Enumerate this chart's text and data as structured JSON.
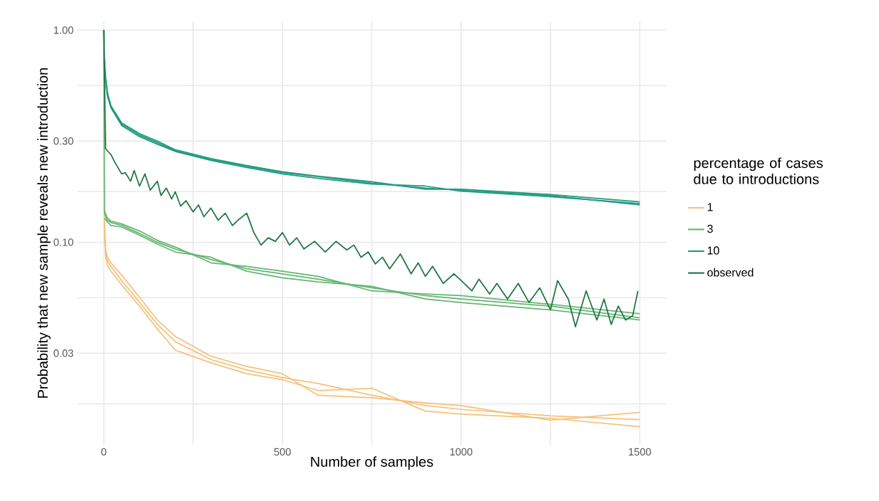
{
  "chart_data": {
    "type": "line",
    "xlabel": "Number of samples",
    "ylabel": "Probability that new sample reveals new introduction",
    "legend_title": "percentage of cases due to introductions",
    "legend": "right",
    "log": "y",
    "grid": true,
    "line_style": "solid",
    "xlim": [
      -75,
      1575
    ],
    "ylim": [
      0.0111,
      1.1
    ],
    "xticks": [
      0,
      {
        "value": 250,
        "label": null
      },
      500,
      {
        "value": 750,
        "label": null
      },
      1000,
      {
        "value": 1250,
        "label": null
      },
      1500
    ],
    "yticks": [
      {
        "value": 0.01732,
        "label": null
      },
      0.03,
      {
        "value": 0.05477,
        "label": null
      },
      {
        "value": 0.1,
        "label": "0.10"
      },
      {
        "value": 0.1732,
        "label": null
      },
      {
        "value": 0.3,
        "label": "0.30"
      },
      {
        "value": 0.5477,
        "label": null
      },
      {
        "value": 1,
        "label": "1.00"
      }
    ],
    "x": [
      0,
      2,
      5,
      10,
      20,
      50,
      100,
      150,
      200,
      300,
      400,
      500,
      600,
      750,
      900,
      1000,
      1250,
      1500
    ],
    "series": [
      {
        "name": "1",
        "color": "#f5c17a",
        "values": [
          1.0,
          0.118,
          0.09,
          0.082,
          0.077,
          0.066,
          0.052,
          0.041,
          0.034,
          0.028,
          0.025,
          0.023,
          0.0216,
          0.019,
          0.017,
          0.0163,
          0.0152,
          0.0146
        ]
      },
      {
        "color": "#f5c17a",
        "x": [
          2,
          5,
          10,
          20,
          50,
          100,
          150,
          200,
          300,
          400,
          500,
          600,
          750,
          900,
          1000,
          1250,
          1500
        ],
        "values": [
          0.11,
          0.086,
          0.078,
          0.073,
          0.063,
          0.05,
          0.039,
          0.031,
          0.027,
          0.024,
          0.0225,
          0.02,
          0.0205,
          0.016,
          0.0155,
          0.0148,
          0.0135
        ]
      },
      {
        "color": "#f5c17a",
        "x": [
          2,
          5,
          10,
          20,
          50,
          100,
          150,
          200,
          300,
          400,
          500,
          600,
          750,
          900,
          1000,
          1250,
          1500
        ],
        "values": [
          0.125,
          0.093,
          0.085,
          0.08,
          0.07,
          0.055,
          0.043,
          0.036,
          0.029,
          0.026,
          0.024,
          0.019,
          0.0185,
          0.0175,
          0.017,
          0.0145,
          0.0158
        ]
      },
      {
        "name": "3",
        "color": "#66b572",
        "values": [
          1.0,
          0.137,
          0.133,
          0.127,
          0.124,
          0.12,
          0.11,
          0.1,
          0.093,
          0.083,
          0.075,
          0.071,
          0.067,
          0.061,
          0.056,
          0.054,
          0.05,
          0.044
        ]
      },
      {
        "color": "#66b572",
        "x": [
          2,
          5,
          10,
          20,
          50,
          100,
          150,
          200,
          300,
          400,
          500,
          600,
          750,
          900,
          1000,
          1250,
          1500
        ],
        "values": [
          0.13,
          0.128,
          0.125,
          0.12,
          0.118,
          0.108,
          0.098,
          0.09,
          0.085,
          0.073,
          0.068,
          0.065,
          0.062,
          0.054,
          0.052,
          0.048,
          0.043
        ]
      },
      {
        "color": "#66b572",
        "x": [
          2,
          5,
          10,
          20,
          50,
          100,
          150,
          200,
          300,
          400,
          500,
          600,
          750,
          900,
          1000,
          1250,
          1500
        ],
        "values": [
          0.14,
          0.136,
          0.13,
          0.126,
          0.122,
          0.113,
          0.102,
          0.095,
          0.08,
          0.077,
          0.073,
          0.069,
          0.059,
          0.057,
          0.056,
          0.051,
          0.046
        ]
      },
      {
        "name": "10",
        "color": "#229a82",
        "values": [
          1.0,
          0.7,
          0.595,
          0.5,
          0.437,
          0.36,
          0.32,
          0.295,
          0.27,
          0.245,
          0.228,
          0.213,
          0.204,
          0.19,
          0.18,
          0.176,
          0.166,
          0.15
        ]
      },
      {
        "color": "#229a82",
        "x": [
          2,
          5,
          10,
          20,
          50,
          100,
          150,
          200,
          300,
          400,
          500,
          600,
          750,
          900,
          1000,
          1250,
          1500
        ],
        "values": [
          0.68,
          0.58,
          0.49,
          0.43,
          0.355,
          0.315,
          0.29,
          0.268,
          0.243,
          0.225,
          0.21,
          0.2,
          0.188,
          0.184,
          0.174,
          0.164,
          0.152
        ]
      },
      {
        "color": "#229a82",
        "x": [
          2,
          5,
          10,
          20,
          50,
          100,
          150,
          200,
          300,
          400,
          500,
          600,
          750,
          900,
          1000,
          1250,
          1500
        ],
        "values": [
          0.72,
          0.6,
          0.51,
          0.44,
          0.365,
          0.325,
          0.3,
          0.273,
          0.248,
          0.23,
          0.215,
          0.205,
          0.193,
          0.178,
          0.178,
          0.168,
          0.155
        ]
      },
      {
        "name": "observed",
        "color": "#1e7542",
        "x": [
          0,
          5,
          20,
          30,
          50,
          60,
          75,
          85,
          100,
          115,
          130,
          150,
          160,
          175,
          190,
          200,
          215,
          230,
          250,
          265,
          280,
          300,
          320,
          340,
          360,
          380,
          400,
          420,
          440,
          460,
          480,
          500,
          520,
          540,
          560,
          590,
          620,
          650,
          680,
          700,
          720,
          740,
          760,
          780,
          800,
          830,
          860,
          880,
          900,
          920,
          950,
          980,
          1000,
          1030,
          1050,
          1080,
          1100,
          1130,
          1160,
          1190,
          1220,
          1250,
          1270,
          1300,
          1320,
          1350,
          1380,
          1400,
          1420,
          1440,
          1460,
          1480,
          1495
        ],
        "values": [
          1.0,
          0.276,
          0.259,
          0.24,
          0.21,
          0.213,
          0.194,
          0.218,
          0.184,
          0.21,
          0.176,
          0.194,
          0.166,
          0.18,
          0.16,
          0.173,
          0.148,
          0.157,
          0.139,
          0.15,
          0.132,
          0.145,
          0.127,
          0.137,
          0.12,
          0.129,
          0.137,
          0.111,
          0.097,
          0.105,
          0.101,
          0.111,
          0.097,
          0.105,
          0.093,
          0.101,
          0.09,
          0.101,
          0.092,
          0.097,
          0.085,
          0.09,
          0.079,
          0.085,
          0.075,
          0.088,
          0.071,
          0.08,
          0.069,
          0.077,
          0.064,
          0.071,
          0.066,
          0.059,
          0.067,
          0.057,
          0.064,
          0.054,
          0.064,
          0.052,
          0.061,
          0.048,
          0.066,
          0.054,
          0.04,
          0.059,
          0.043,
          0.054,
          0.041,
          0.05,
          0.043,
          0.045,
          0.059
        ]
      }
    ]
  }
}
